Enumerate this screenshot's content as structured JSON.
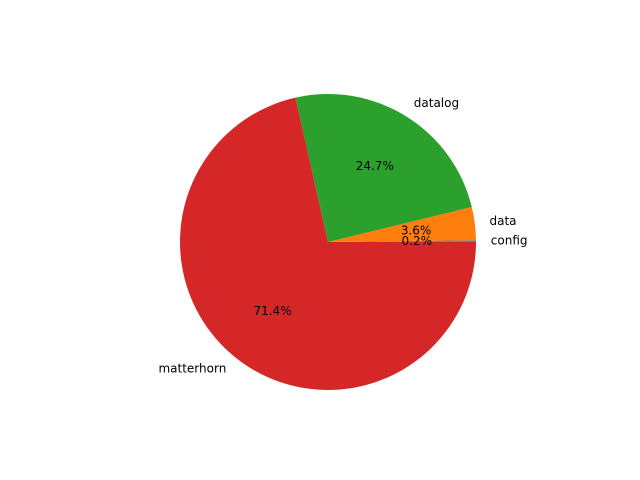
{
  "chart_data": {
    "type": "pie",
    "title": "",
    "slices": [
      {
        "label": "config",
        "value": 0.2,
        "pct_label": "0.2%",
        "color": "#7f7f7f"
      },
      {
        "label": "data",
        "value": 3.6,
        "pct_label": "3.6%",
        "color": "#ff7f0e"
      },
      {
        "label": "datalog",
        "value": 24.7,
        "pct_label": "24.7%",
        "color": "#2ca02c"
      },
      {
        "label": "matterhorn",
        "value": 71.4,
        "pct_label": "71.4%",
        "color": "#d62728"
      }
    ],
    "start_angle_deg": 0,
    "direction": "counterclockwise",
    "legend": "none"
  }
}
